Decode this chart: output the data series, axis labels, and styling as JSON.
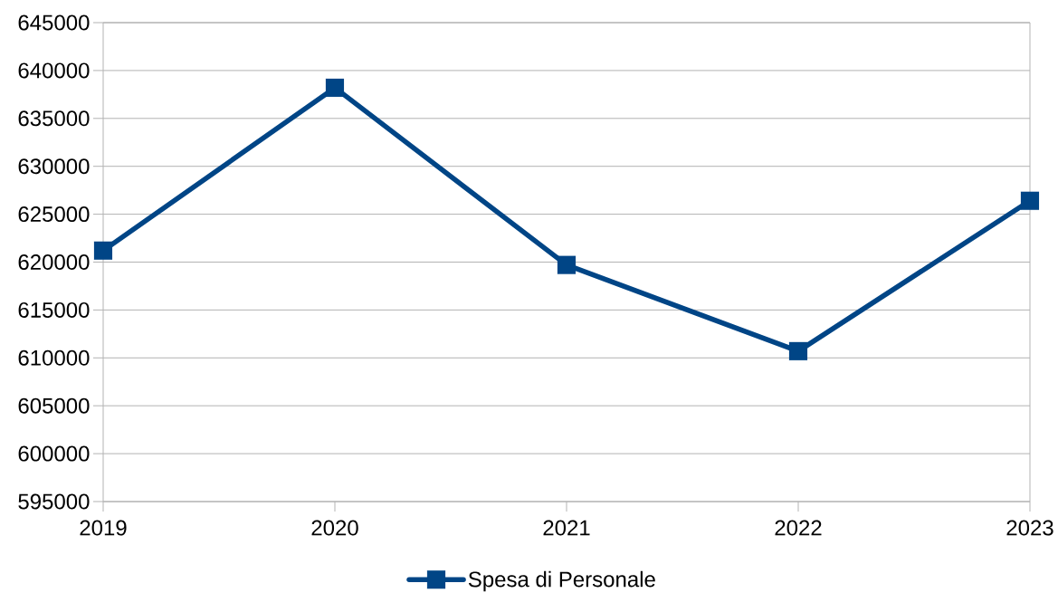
{
  "chart_data": {
    "type": "line",
    "x": [
      2019,
      2020,
      2021,
      2022,
      2023
    ],
    "series": [
      {
        "name": "Spesa di Personale",
        "color": "#004586",
        "values": [
          621200,
          638200,
          619700,
          610700,
          626400
        ]
      }
    ],
    "xlim": [
      2019,
      2023
    ],
    "xticks": [
      2019,
      2020,
      2021,
      2022,
      2023
    ],
    "ylim": [
      595000,
      645000
    ],
    "yticks": [
      595000,
      600000,
      605000,
      610000,
      615000,
      620000,
      625000,
      630000,
      635000,
      640000,
      645000
    ],
    "grid": "y",
    "legend": "bottom",
    "marker": "square",
    "line_style": "solid"
  }
}
